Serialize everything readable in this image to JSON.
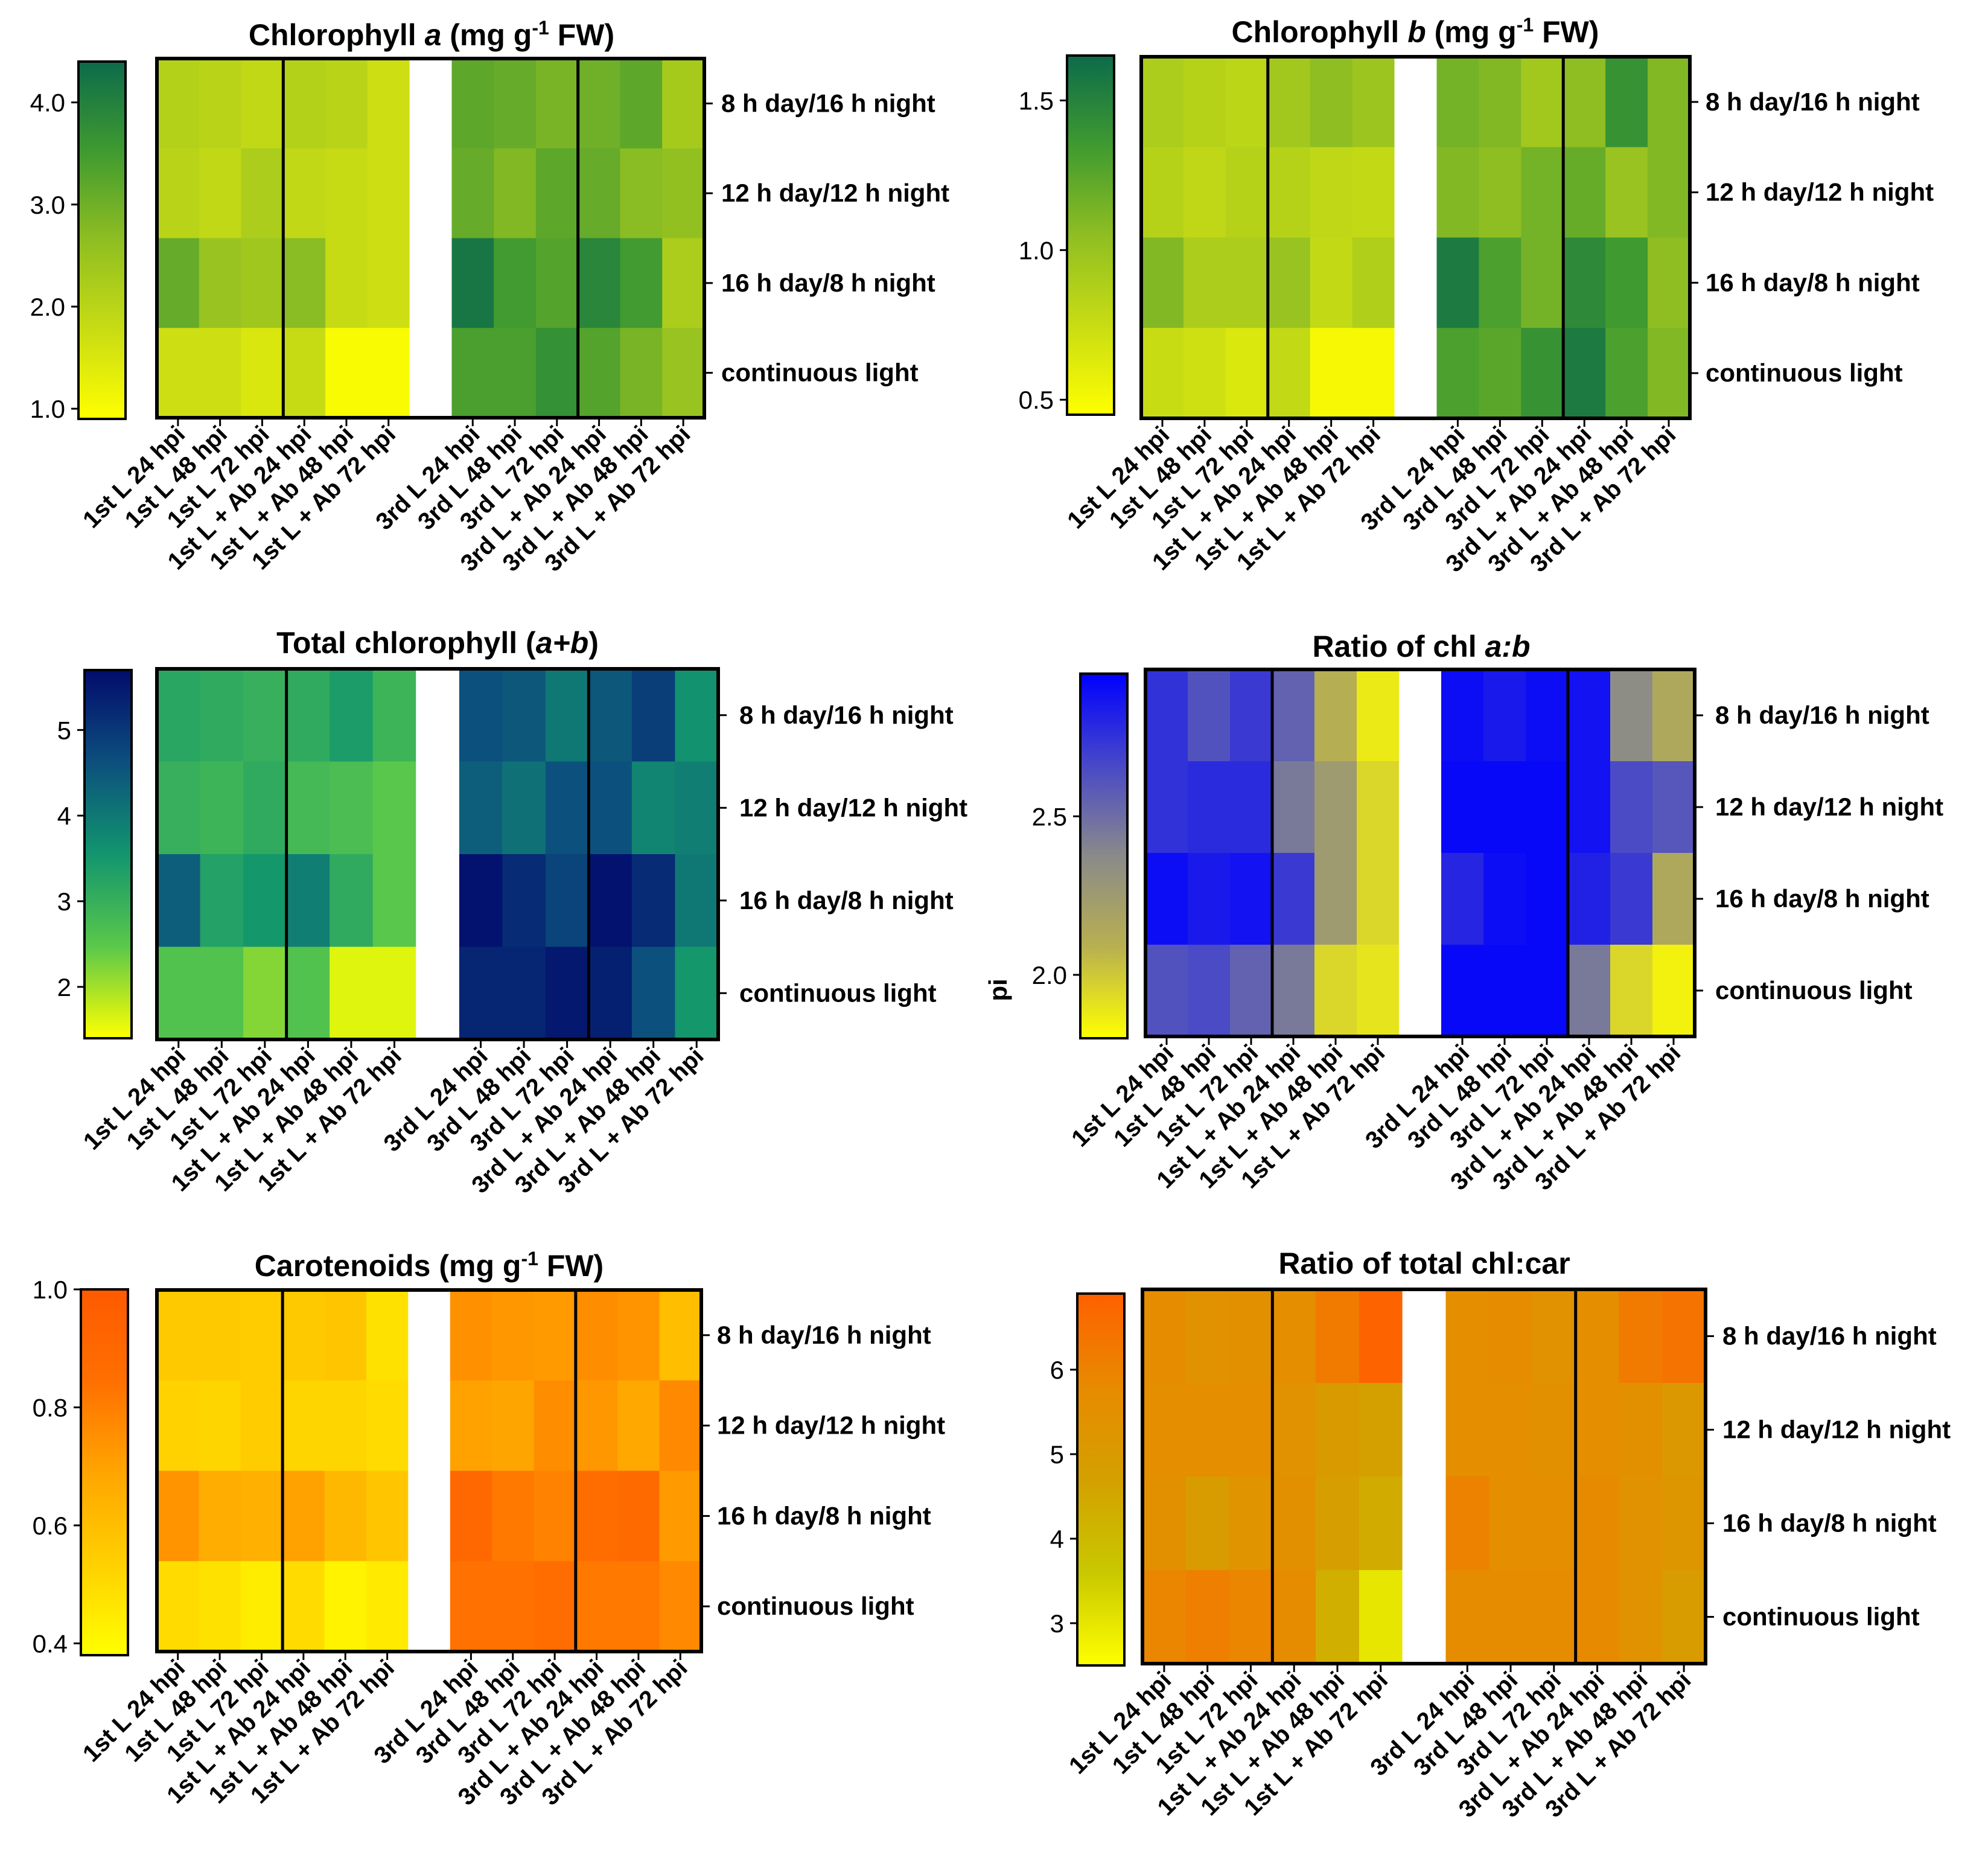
{
  "chart_data": [
    {
      "type": "heatmap",
      "title": "Chlorophyll a (mg g-1 FW)",
      "title_parts": [
        {
          "text": "Chlorophyll ",
          "italic": false
        },
        {
          "text": "a",
          "italic": true
        },
        {
          "text": " (mg g",
          "italic": false
        },
        {
          "text": "-1",
          "italic": false,
          "sup": true
        },
        {
          "text": " FW)",
          "italic": false
        }
      ],
      "colormap": "yellow-green",
      "colorbar": {
        "min": 0.9,
        "max": 4.4,
        "ticks": [
          1.0,
          2.0,
          3.0,
          4.0
        ],
        "tick_labels": [
          "1.0",
          "2.0",
          "3.0",
          "4.0"
        ]
      },
      "rows": [
        "8 h day/16 h night",
        "12 h day/12 h night",
        "16 h day/8 h night",
        "continuous light"
      ],
      "columns": [
        "1st L 24 hpi",
        "1st L 48 hpi",
        "1st L 72 hpi",
        "1st L + Ab 24 hpi",
        "1st L + Ab 48 hpi",
        "1st L + Ab 72 hpi",
        "3rd L 24 hpi",
        "3rd L 48 hpi",
        "3rd L 72 hpi",
        "3rd L + Ab 24 hpi",
        "3rd L + Ab 48 hpi",
        "3rd L + Ab 72 hpi"
      ],
      "values": [
        [
          2.1,
          2.0,
          1.9,
          2.1,
          2.0,
          1.7,
          3.2,
          3.1,
          2.9,
          3.0,
          3.2,
          2.3
        ],
        [
          2.0,
          1.9,
          2.2,
          1.9,
          1.8,
          1.7,
          3.1,
          2.8,
          3.2,
          3.1,
          2.7,
          2.6
        ],
        [
          3.1,
          2.5,
          2.4,
          2.7,
          1.8,
          1.7,
          4.2,
          3.5,
          3.3,
          3.9,
          3.5,
          2.2
        ],
        [
          1.7,
          1.7,
          1.5,
          1.8,
          1.0,
          1.0,
          3.4,
          3.4,
          3.7,
          3.3,
          2.9,
          2.5
        ]
      ]
    },
    {
      "type": "heatmap",
      "title": "Chlorophyll b (mg g-1 FW)",
      "title_parts": [
        {
          "text": "Chlorophyll ",
          "italic": false
        },
        {
          "text": "b",
          "italic": true
        },
        {
          "text": " (mg g",
          "italic": false
        },
        {
          "text": "-1",
          "italic": false,
          "sup": true
        },
        {
          "text": " FW)",
          "italic": false
        }
      ],
      "colormap": "yellow-green",
      "colorbar": {
        "min": 0.45,
        "max": 1.65,
        "ticks": [
          0.5,
          1.0,
          1.5
        ],
        "tick_labels": [
          "0.5",
          "1.0",
          "1.5"
        ]
      },
      "rows": [
        "8 h day/16 h night",
        "12 h day/12 h night",
        "16 h day/8 h night",
        "continuous light"
      ],
      "columns": [
        "1st L 24 hpi",
        "1st L 48 hpi",
        "1st L 72 hpi",
        "1st L + Ab 24 hpi",
        "1st L + Ab 48 hpi",
        "1st L + Ab 72 hpi",
        "3rd L 24 hpi",
        "3rd L 48 hpi",
        "3rd L 72 hpi",
        "3rd L + Ab 24 hpi",
        "3rd L + Ab 48 hpi",
        "3rd L + Ab 72 hpi"
      ],
      "values": [
        [
          0.9,
          0.85,
          0.82,
          0.95,
          1.05,
          0.98,
          1.15,
          1.1,
          0.95,
          1.05,
          1.4,
          1.1
        ],
        [
          0.85,
          0.8,
          0.85,
          0.85,
          0.8,
          0.78,
          1.1,
          1.05,
          1.15,
          1.2,
          1.0,
          1.1
        ],
        [
          1.1,
          0.9,
          0.9,
          1.0,
          0.78,
          0.88,
          1.55,
          1.3,
          1.15,
          1.45,
          1.35,
          1.05
        ],
        [
          0.75,
          0.72,
          0.65,
          0.78,
          0.5,
          0.5,
          1.3,
          1.25,
          1.4,
          1.55,
          1.3,
          1.1
        ]
      ]
    },
    {
      "type": "heatmap",
      "title": "Total chlorophyll (a+b)",
      "title_parts": [
        {
          "text": "Total chlorophyll (",
          "italic": false
        },
        {
          "text": "a+b",
          "italic": true
        },
        {
          "text": ")",
          "italic": false
        }
      ],
      "colormap": "yellow-green-navy",
      "colorbar": {
        "min": 1.4,
        "max": 5.7,
        "ticks": [
          2,
          3,
          4,
          5
        ],
        "tick_labels": [
          "2",
          "3",
          "4",
          "5"
        ]
      },
      "rows": [
        "8 h day/16 h night",
        "12 h day/12 h night",
        "16 h day/8 h night",
        "continuous light"
      ],
      "columns": [
        "1st L 24 hpi",
        "1st L 48 hpi",
        "1st L 72 hpi",
        "1st L + Ab 24 hpi",
        "1st L + Ab 48 hpi",
        "1st L + Ab 72 hpi",
        "3rd L 24 hpi",
        "3rd L 48 hpi",
        "3rd L 72 hpi",
        "3rd L + Ab 24 hpi",
        "3rd L + Ab 48 hpi",
        "3rd L + Ab 72 hpi"
      ],
      "values": [
        [
          3.2,
          3.1,
          3.0,
          3.1,
          3.4,
          2.9,
          4.6,
          4.5,
          4.0,
          4.5,
          4.9,
          3.6
        ],
        [
          3.0,
          2.9,
          3.1,
          2.8,
          2.7,
          2.5,
          4.4,
          4.1,
          4.6,
          4.6,
          3.8,
          3.9
        ],
        [
          4.4,
          3.3,
          3.5,
          3.9,
          3.1,
          2.5,
          5.6,
          5.2,
          4.8,
          5.6,
          5.2,
          4.0
        ],
        [
          2.6,
          2.6,
          2.2,
          2.6,
          1.6,
          1.6,
          5.3,
          5.3,
          5.5,
          5.4,
          4.6,
          3.5
        ]
      ]
    },
    {
      "type": "heatmap",
      "title": "Ratio of chl a:b",
      "title_parts": [
        {
          "text": "Ratio of chl ",
          "italic": false
        },
        {
          "text": "a:b",
          "italic": true
        }
      ],
      "colormap": "yellow-gray-blue",
      "colorbar": {
        "min": 1.8,
        "max": 2.95,
        "ticks": [
          2.0,
          2.5
        ],
        "tick_labels": [
          "2.0",
          "2.5"
        ]
      },
      "rows": [
        "8 h day/16 h night",
        "12 h day/12 h night",
        "16 h day/8 h night",
        "continuous light"
      ],
      "columns": [
        "1st L 24 hpi",
        "1st L 48 hpi",
        "1st L 72 hpi",
        "1st L + Ab 24 hpi",
        "1st L + Ab 48 hpi",
        "1st L + Ab 72 hpi",
        "3rd L 24 hpi",
        "3rd L 48 hpi",
        "3rd L 72 hpi",
        "3rd L + Ab 24 hpi",
        "3rd L + Ab 48 hpi",
        "3rd L + Ab 72 hpi"
      ],
      "values": [
        [
          2.75,
          2.62,
          2.72,
          2.55,
          2.1,
          1.88,
          2.9,
          2.85,
          2.9,
          2.88,
          2.35,
          2.15
        ],
        [
          2.75,
          2.78,
          2.78,
          2.45,
          2.25,
          1.95,
          2.92,
          2.92,
          2.92,
          2.88,
          2.65,
          2.6
        ],
        [
          2.9,
          2.85,
          2.88,
          2.72,
          2.25,
          1.95,
          2.8,
          2.9,
          2.92,
          2.82,
          2.72,
          2.15
        ],
        [
          2.62,
          2.65,
          2.55,
          2.45,
          1.95,
          1.9,
          2.92,
          2.92,
          2.92,
          2.45,
          1.95,
          1.85
        ]
      ]
    },
    {
      "type": "heatmap",
      "title": "Carotenoids (mg g-1 FW)",
      "title_parts": [
        {
          "text": "Carotenoids (mg g",
          "italic": false
        },
        {
          "text": "-1",
          "italic": false,
          "sup": true
        },
        {
          "text": " FW)",
          "italic": false
        }
      ],
      "colormap": "yellow-orange",
      "colorbar": {
        "min": 0.38,
        "max": 1.0,
        "ticks": [
          0.4,
          0.6,
          0.8,
          1.0
        ],
        "tick_labels": [
          "0.4",
          "0.6",
          "0.8",
          "1.0"
        ]
      },
      "rows": [
        "8 h day/16 h night",
        "12 h day/12 h night",
        "16 h day/8 h night",
        "continuous light"
      ],
      "columns": [
        "1st L 24 hpi",
        "1st L 48 hpi",
        "1st L 72 hpi",
        "1st L + Ab 24 hpi",
        "1st L + Ab 48 hpi",
        "1st L + Ab 72 hpi",
        "3rd L 24 hpi",
        "3rd L 48 hpi",
        "3rd L 72 hpi",
        "3rd L + Ab 24 hpi",
        "3rd L + Ab 48 hpi",
        "3rd L + Ab 72 hpi"
      ],
      "values": [
        [
          0.56,
          0.56,
          0.55,
          0.56,
          0.57,
          0.48,
          0.75,
          0.73,
          0.72,
          0.76,
          0.74,
          0.6
        ],
        [
          0.53,
          0.52,
          0.55,
          0.52,
          0.52,
          0.5,
          0.7,
          0.69,
          0.76,
          0.73,
          0.68,
          0.77
        ],
        [
          0.74,
          0.66,
          0.65,
          0.7,
          0.62,
          0.57,
          0.9,
          0.82,
          0.79,
          0.86,
          0.88,
          0.72
        ],
        [
          0.5,
          0.48,
          0.44,
          0.5,
          0.42,
          0.45,
          0.84,
          0.84,
          0.87,
          0.82,
          0.82,
          0.77
        ]
      ]
    },
    {
      "type": "heatmap",
      "title": "Ratio of total chl:car",
      "title_parts": [
        {
          "text": "Ratio of total chl:car",
          "italic": false
        }
      ],
      "colormap": "yellow-olive-orange",
      "colorbar": {
        "min": 2.5,
        "max": 6.9,
        "ticks": [
          3,
          4,
          5,
          6
        ],
        "tick_labels": [
          "3",
          "4",
          "5",
          "6"
        ]
      },
      "rows": [
        "8 h day/16 h night",
        "12 h day/12 h night",
        "16 h day/8 h night",
        "continuous light"
      ],
      "columns": [
        "1st L 24 hpi",
        "1st L 48 hpi",
        "1st L 72 hpi",
        "1st L + Ab 24 hpi",
        "1st L + Ab 48 hpi",
        "1st L + Ab 72 hpi",
        "3rd L 24 hpi",
        "3rd L 48 hpi",
        "3rd L 72 hpi",
        "3rd L + Ab 24 hpi",
        "3rd L + Ab 48 hpi",
        "3rd L + Ab 72 hpi"
      ],
      "values": [
        [
          5.7,
          5.4,
          5.5,
          5.6,
          6.2,
          6.8,
          5.6,
          5.7,
          5.4,
          5.6,
          6.2,
          6.4
        ],
        [
          5.6,
          5.6,
          5.6,
          5.4,
          5.0,
          4.7,
          5.6,
          5.6,
          5.5,
          5.6,
          5.5,
          5.1
        ],
        [
          5.5,
          4.9,
          5.3,
          5.5,
          4.8,
          4.4,
          6.0,
          5.6,
          5.6,
          5.8,
          5.4,
          5.2
        ],
        [
          5.9,
          6.1,
          5.9,
          5.7,
          4.3,
          3.0,
          5.7,
          5.7,
          5.7,
          5.8,
          5.4,
          4.9
        ]
      ]
    }
  ],
  "stray_labels": {
    "pi": "pi"
  },
  "colormaps": {
    "yellow-green": [
      "#ffff00",
      "#c8dc14",
      "#8fbe22",
      "#3f9a30",
      "#0c6b4a"
    ],
    "yellow-green-navy": [
      "#ffff00",
      "#5ac84a",
      "#12956e",
      "#0c4f7d",
      "#020c6c"
    ],
    "yellow-gray-blue": [
      "#ffff00",
      "#b8b050",
      "#8a8a8a",
      "#4848c8",
      "#0000ff"
    ],
    "yellow-orange": [
      "#ffff00",
      "#ffd000",
      "#ffa500",
      "#ff6f00",
      "#ff5a00"
    ],
    "yellow-olive-orange": [
      "#ffff00",
      "#c8c800",
      "#d4a000",
      "#e88a00",
      "#ff6000"
    ]
  }
}
